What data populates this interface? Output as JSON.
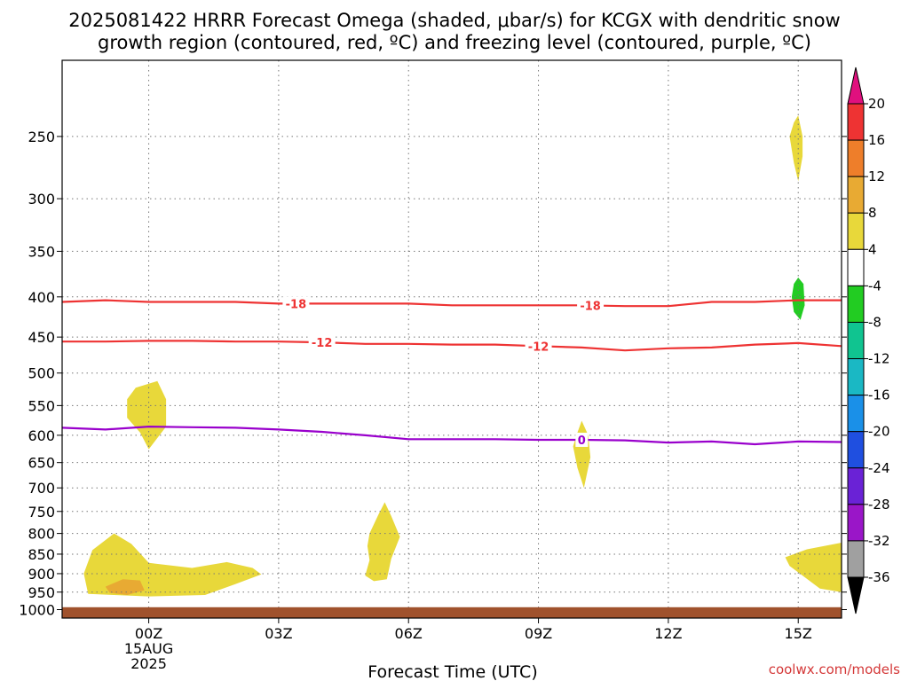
{
  "title_line1": "2025081422 HRRR Forecast Omega (shaded, μbar/s) for KCGX with dendritic snow",
  "title_line2": "growth region (contoured, red, ºC) and freezing level (contoured, purple, ºC)",
  "credit": "coolwx.com/models",
  "chart_data": {
    "type": "contour",
    "xlabel": "Forecast Time (UTC)",
    "ylabel": "",
    "x_unit": "hours since 2025-08-14 22Z",
    "xlim": [
      0,
      18
    ],
    "x_ticks": [
      {
        "h": 2,
        "label": "00Z",
        "sub": [
          "15AUG",
          "2025"
        ]
      },
      {
        "h": 5,
        "label": "03Z",
        "sub": []
      },
      {
        "h": 8,
        "label": "06Z",
        "sub": []
      },
      {
        "h": 11,
        "label": "09Z",
        "sub": []
      },
      {
        "h": 14,
        "label": "12Z",
        "sub": []
      },
      {
        "h": 17,
        "label": "15Z",
        "sub": []
      }
    ],
    "y_scale": "log",
    "ylim": [
      1025,
      200
    ],
    "y_ticks": [
      250,
      300,
      350,
      400,
      450,
      500,
      550,
      600,
      650,
      700,
      750,
      800,
      850,
      900,
      950,
      1000
    ],
    "grid": true,
    "surface_color": "#a0522d",
    "surface_top_mb": 993,
    "contours": [
      {
        "name": "-18",
        "level": -18,
        "color": "#ee3333",
        "label_hours": [
          5.4,
          12.2
        ],
        "points": [
          [
            0,
            406
          ],
          [
            1,
            404
          ],
          [
            2,
            406
          ],
          [
            3,
            406
          ],
          [
            4,
            406
          ],
          [
            5,
            408
          ],
          [
            6,
            408
          ],
          [
            7,
            408
          ],
          [
            8,
            408
          ],
          [
            9,
            410
          ],
          [
            10,
            410
          ],
          [
            11,
            410
          ],
          [
            12,
            410
          ],
          [
            13,
            411
          ],
          [
            14,
            411
          ],
          [
            15,
            406
          ],
          [
            16,
            406
          ],
          [
            17,
            404
          ],
          [
            18,
            404
          ]
        ]
      },
      {
        "name": "-12",
        "level": -12,
        "color": "#ee3333",
        "label_hours": [
          6.0,
          11.0
        ],
        "points": [
          [
            0,
            456
          ],
          [
            1,
            456
          ],
          [
            2,
            455
          ],
          [
            3,
            455
          ],
          [
            4,
            456
          ],
          [
            5,
            456
          ],
          [
            6,
            457
          ],
          [
            7,
            459
          ],
          [
            8,
            459
          ],
          [
            9,
            460
          ],
          [
            10,
            460
          ],
          [
            11,
            462
          ],
          [
            12,
            464
          ],
          [
            13,
            468
          ],
          [
            14,
            465
          ],
          [
            15,
            464
          ],
          [
            16,
            460
          ],
          [
            17,
            458
          ],
          [
            18,
            462
          ]
        ]
      },
      {
        "name": "0",
        "level": 0,
        "color": "#9900cc",
        "label_hours": [
          12.0
        ],
        "points": [
          [
            0,
            587
          ],
          [
            1,
            590
          ],
          [
            2,
            585
          ],
          [
            3,
            586
          ],
          [
            4,
            587
          ],
          [
            5,
            590
          ],
          [
            6,
            594
          ],
          [
            7,
            600
          ],
          [
            8,
            607
          ],
          [
            9,
            607
          ],
          [
            10,
            607
          ],
          [
            11,
            608
          ],
          [
            12,
            608
          ],
          [
            13,
            609
          ],
          [
            14,
            613
          ],
          [
            15,
            611
          ],
          [
            16,
            616
          ],
          [
            17,
            611
          ],
          [
            18,
            612
          ]
        ]
      }
    ],
    "omega_regions": [
      {
        "value": 4,
        "color": "#e8d83a",
        "outline": [
          [
            1.5,
            540
          ],
          [
            1.7,
            522
          ],
          [
            2.2,
            512
          ],
          [
            2.4,
            540
          ],
          [
            2.4,
            585
          ],
          [
            2.0,
            625
          ],
          [
            1.8,
            595
          ],
          [
            1.5,
            570
          ]
        ]
      },
      {
        "value": 4,
        "color": "#e8d83a",
        "outline": [
          [
            0.6,
            955
          ],
          [
            0.5,
            900
          ],
          [
            0.7,
            840
          ],
          [
            1.2,
            800
          ],
          [
            1.6,
            825
          ],
          [
            2.0,
            872
          ],
          [
            3.0,
            885
          ],
          [
            3.8,
            870
          ],
          [
            4.4,
            885
          ],
          [
            4.6,
            902
          ],
          [
            4.0,
            928
          ],
          [
            3.3,
            958
          ],
          [
            2.0,
            962
          ],
          [
            1.2,
            958
          ]
        ]
      },
      {
        "value": 8,
        "color": "#e8aa33",
        "outline": [
          [
            1.0,
            935
          ],
          [
            1.4,
            915
          ],
          [
            1.8,
            918
          ],
          [
            1.9,
            945
          ],
          [
            1.5,
            958
          ],
          [
            1.1,
            952
          ]
        ]
      },
      {
        "value": 4,
        "color": "#e8d83a",
        "outline": [
          [
            7.1,
            800
          ],
          [
            7.3,
            758
          ],
          [
            7.45,
            730
          ],
          [
            7.6,
            760
          ],
          [
            7.8,
            808
          ],
          [
            7.6,
            862
          ],
          [
            7.5,
            915
          ],
          [
            7.2,
            920
          ],
          [
            7.0,
            905
          ],
          [
            7.1,
            865
          ],
          [
            7.05,
            830
          ]
        ]
      },
      {
        "value": 4,
        "color": "#e8d83a",
        "outline": [
          [
            11.8,
            620
          ],
          [
            11.9,
            595
          ],
          [
            12.0,
            575
          ],
          [
            12.15,
            600
          ],
          [
            12.2,
            640
          ],
          [
            12.05,
            700
          ],
          [
            11.9,
            660
          ]
        ]
      },
      {
        "value": 4,
        "color": "#e8d83a",
        "outline": [
          [
            16.8,
            250
          ],
          [
            16.9,
            240
          ],
          [
            17.0,
            235
          ],
          [
            17.1,
            250
          ],
          [
            17.1,
            265
          ],
          [
            17.0,
            285
          ],
          [
            16.9,
            270
          ]
        ]
      },
      {
        "value": -4,
        "color": "#22cc22",
        "outline": [
          [
            16.9,
            385
          ],
          [
            17.0,
            378
          ],
          [
            17.12,
            385
          ],
          [
            17.15,
            410
          ],
          [
            17.05,
            428
          ],
          [
            16.9,
            418
          ],
          [
            16.85,
            400
          ]
        ]
      },
      {
        "value": 4,
        "color": "#e8d83a",
        "outline": [
          [
            16.7,
            858
          ],
          [
            17.2,
            838
          ],
          [
            18.0,
            822
          ],
          [
            18.0,
            950
          ],
          [
            17.5,
            940
          ],
          [
            17.1,
            905
          ],
          [
            16.8,
            880
          ]
        ]
      }
    ],
    "colorbar": {
      "bins": [
        {
          "from": 16,
          "to": 20,
          "color": "#ee3333"
        },
        {
          "from": 12,
          "to": 16,
          "color": "#ee7e2a"
        },
        {
          "from": 8,
          "to": 12,
          "color": "#e8aa33"
        },
        {
          "from": 4,
          "to": 8,
          "color": "#e8d83a"
        },
        {
          "from": -4,
          "to": 4,
          "color": "#ffffff"
        },
        {
          "from": -8,
          "to": -4,
          "color": "#22cc22"
        },
        {
          "from": -12,
          "to": -8,
          "color": "#10c490"
        },
        {
          "from": -16,
          "to": -12,
          "color": "#1ab8c4"
        },
        {
          "from": -20,
          "to": -16,
          "color": "#1a90e8"
        },
        {
          "from": -24,
          "to": -20,
          "color": "#1f4fe0"
        },
        {
          "from": -28,
          "to": -24,
          "color": "#6a22d6"
        },
        {
          "from": -32,
          "to": -28,
          "color": "#9a16c8"
        },
        {
          "from": -36,
          "to": -32,
          "color": "#a0a0a0"
        }
      ],
      "top_arrow_color": "#e0107e",
      "bottom_arrow_color": "#000000",
      "labels": [
        "20",
        "16",
        "12",
        "8",
        "4",
        "-4",
        "-8",
        "-12",
        "-16",
        "-20",
        "-24",
        "-28",
        "-32",
        "-36"
      ]
    }
  }
}
